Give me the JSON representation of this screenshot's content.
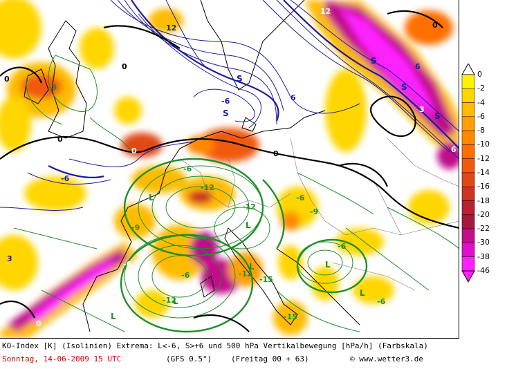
{
  "footer": {
    "line1": "KO-Index [K] (Isolinien) Extrema: L<-6, S>+6 und 500 hPa Vertikalbewegung [hPa/h] (Farbskala)",
    "date": "Sonntag, 14-06-2009  15 UTC",
    "model": "(GFS 0.5°)",
    "run": "(Freitag 00 + 63)",
    "copyright": "© www.wetter3.de"
  },
  "legend": {
    "levels": [
      "0",
      "-2",
      "-4",
      "-6",
      "-8",
      "-10",
      "-12",
      "-14",
      "-16",
      "-18",
      "-20",
      "-22",
      "-30",
      "-38",
      "-46"
    ],
    "colors": [
      "#ffffff",
      "#fff200",
      "#ffd600",
      "#ffbb00",
      "#ffa000",
      "#ff8800",
      "#ff7000",
      "#f05a10",
      "#e04818",
      "#cc3322",
      "#b82233",
      "#a8183c",
      "#c0108a",
      "#e010c8",
      "#ff22ff"
    ]
  },
  "map_labels": {
    "high_marker": "S",
    "low_marker": "L",
    "zero_line_value": "0",
    "values": [
      "12",
      "-3",
      "-6",
      "-9",
      "-12",
      "-15",
      "-3",
      "6",
      "3"
    ]
  },
  "colors": {
    "positive_isolines": "#1a1aa0",
    "negative_isolines": "#1f8f2a",
    "zero_isoline": "#000000",
    "coastline": "#000000"
  }
}
